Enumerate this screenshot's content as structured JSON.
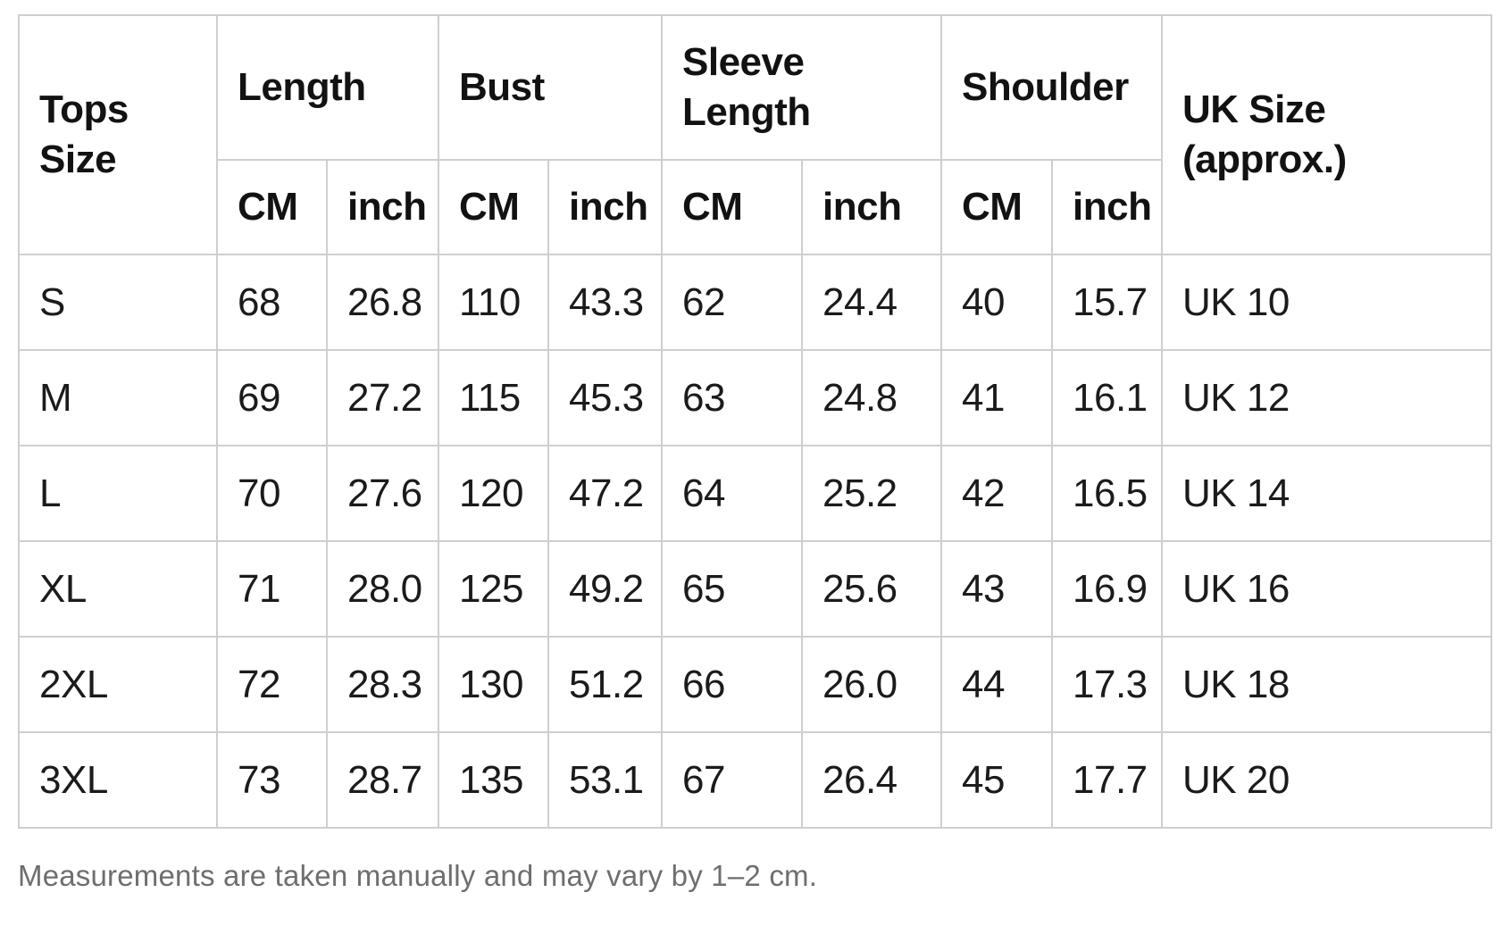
{
  "header": {
    "tops_size": "Tops Size",
    "groups": [
      "Length",
      "Bust",
      "Sleeve Length",
      "Shoulder"
    ],
    "units": [
      "CM",
      "inch",
      "CM",
      "inch",
      "CM",
      "inch",
      "CM",
      "inch"
    ],
    "uk_size": "UK Size (approx.)"
  },
  "rows": [
    {
      "size": "S",
      "values": [
        "68",
        "26.8",
        "110",
        "43.3",
        "62",
        "24.4",
        "40",
        "15.7"
      ],
      "uk_size": "UK 10"
    },
    {
      "size": "M",
      "values": [
        "69",
        "27.2",
        "115",
        "45.3",
        "63",
        "24.8",
        "41",
        "16.1"
      ],
      "uk_size": "UK 12"
    },
    {
      "size": "L",
      "values": [
        "70",
        "27.6",
        "120",
        "47.2",
        "64",
        "25.2",
        "42",
        "16.5"
      ],
      "uk_size": "UK 14"
    },
    {
      "size": "XL",
      "values": [
        "71",
        "28.0",
        "125",
        "49.2",
        "65",
        "25.6",
        "43",
        "16.9"
      ],
      "uk_size": "UK 16"
    },
    {
      "size": "2XL",
      "values": [
        "72",
        "28.3",
        "130",
        "51.2",
        "66",
        "26.0",
        "44",
        "17.3"
      ],
      "uk_size": "UK 18"
    },
    {
      "size": "3XL",
      "values": [
        "73",
        "28.7",
        "135",
        "53.1",
        "67",
        "26.4",
        "45",
        "17.7"
      ],
      "uk_size": "UK 20"
    }
  ],
  "footnote": "Measurements are taken manually and may vary by 1–2 cm.",
  "colors": {
    "border": "#cfcfcf",
    "heading": "#121212",
    "text": "#1b1b1b",
    "note": "#6e6e6e",
    "background": "#ffffff"
  }
}
